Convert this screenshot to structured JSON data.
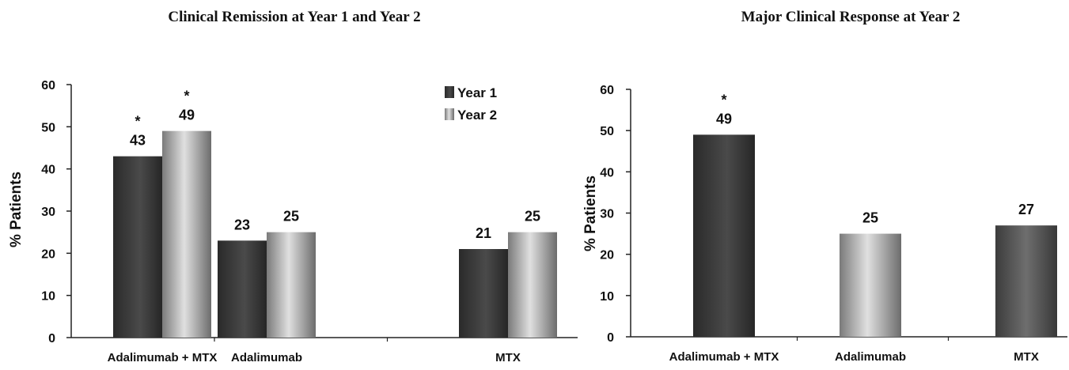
{
  "chart_data": [
    {
      "type": "bar",
      "title": "Clinical Remission at Year 1 and Year 2",
      "ylabel": "% Patients",
      "xlabel": "",
      "ylim": [
        0,
        60
      ],
      "yticks": [
        "0",
        "10",
        "20",
        "30",
        "40",
        "50",
        "60"
      ],
      "categories": [
        "Adalimumab + MTX",
        "Adalimumab",
        "MTX"
      ],
      "series": [
        {
          "name": "Year 1",
          "values": [
            43,
            23,
            21
          ],
          "labels": [
            "43",
            "23",
            "21"
          ],
          "color": "#3a3a3a"
        },
        {
          "name": "Year 2",
          "values": [
            49,
            25,
            25
          ],
          "labels": [
            "49",
            "25",
            "25"
          ],
          "color": "#9a9a9a"
        }
      ],
      "annotations": [
        {
          "category": 0,
          "series": 0,
          "text": "*"
        },
        {
          "category": 0,
          "series": 1,
          "text": "*"
        }
      ],
      "legend": "top-right",
      "grid": false
    },
    {
      "type": "bar",
      "title": "Major Clinical Response at Year 2",
      "ylabel": "% Patients",
      "xlabel": "",
      "ylim": [
        0,
        60
      ],
      "yticks": [
        "0",
        "10",
        "20",
        "30",
        "40",
        "50",
        "60"
      ],
      "categories": [
        "Adalimumab + MTX",
        "Adalimumab",
        "MTX"
      ],
      "series": [
        {
          "values": [
            49,
            25,
            27
          ],
          "labels": [
            "49",
            "25",
            "27"
          ],
          "colors": [
            "#3a3a3a",
            "#b8b8b8",
            "#5a5a5a"
          ]
        }
      ],
      "annotations": [
        {
          "category": 0,
          "series": 0,
          "text": "*"
        }
      ],
      "legend": "none",
      "grid": false
    }
  ]
}
